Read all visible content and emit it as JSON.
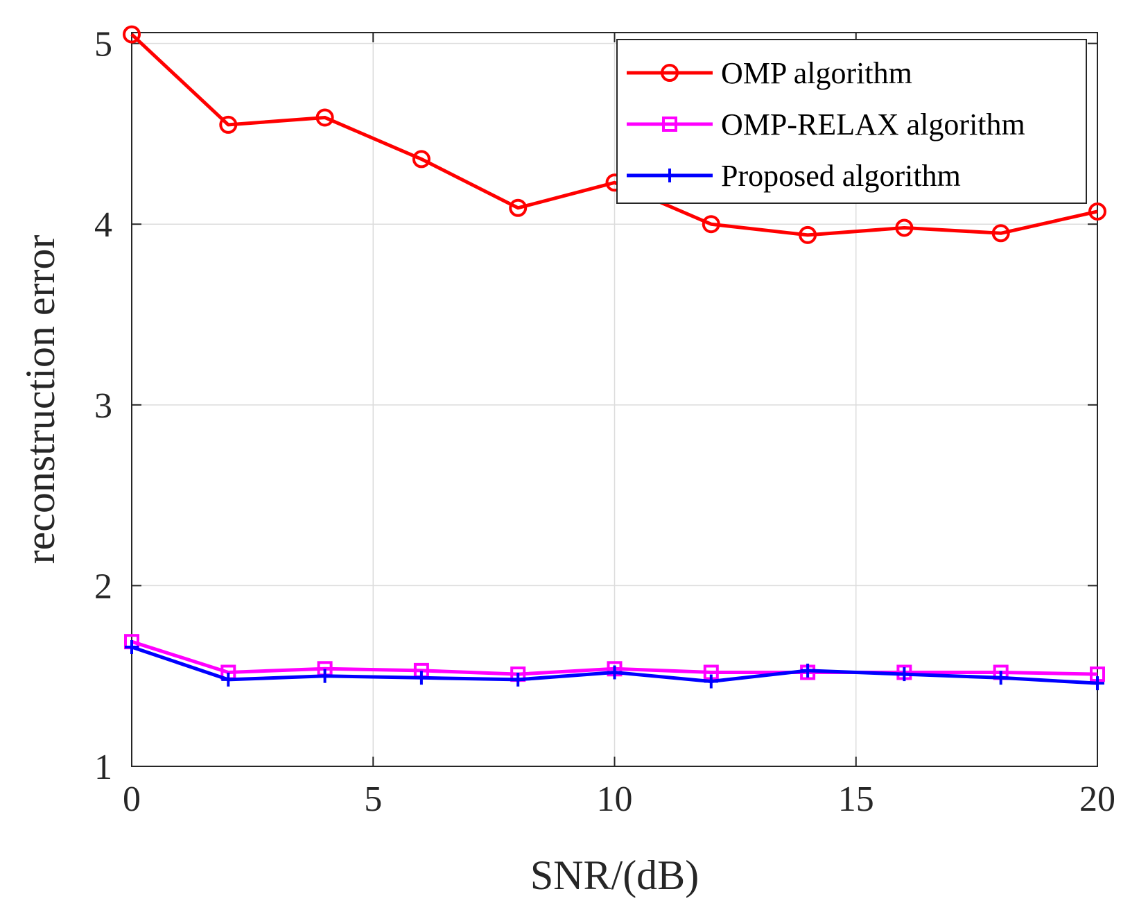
{
  "chart_data": {
    "type": "line",
    "title": "",
    "xlabel": "SNR/(dB)",
    "ylabel": "reconstruction error",
    "xlim": [
      0,
      20
    ],
    "ylim": [
      1,
      5.06
    ],
    "xticks": [
      0,
      5,
      10,
      15,
      20
    ],
    "yticks": [
      1,
      2,
      3,
      4,
      5
    ],
    "x_tick_labels": [
      "0",
      "5",
      "10",
      "15",
      "20"
    ],
    "y_tick_labels": [
      "1",
      "2",
      "3",
      "4",
      "5"
    ],
    "grid": true,
    "legend_position": "top-right",
    "x": [
      0,
      2,
      4,
      6,
      8,
      10,
      12,
      14,
      16,
      18,
      20
    ],
    "series": [
      {
        "name": "OMP algorithm",
        "color": "#ff0000",
        "marker": "circle",
        "values": [
          5.05,
          4.55,
          4.59,
          4.36,
          4.09,
          4.23,
          4.0,
          3.94,
          3.98,
          3.95,
          4.07
        ]
      },
      {
        "name": "OMP-RELAX algorithm",
        "color": "#ff00ff",
        "marker": "square",
        "values": [
          1.69,
          1.52,
          1.54,
          1.53,
          1.51,
          1.54,
          1.52,
          1.52,
          1.52,
          1.52,
          1.51
        ]
      },
      {
        "name": "Proposed algorithm",
        "color": "#0000ff",
        "marker": "plus",
        "values": [
          1.66,
          1.48,
          1.5,
          1.49,
          1.48,
          1.52,
          1.47,
          1.53,
          1.51,
          1.49,
          1.46
        ]
      }
    ]
  }
}
